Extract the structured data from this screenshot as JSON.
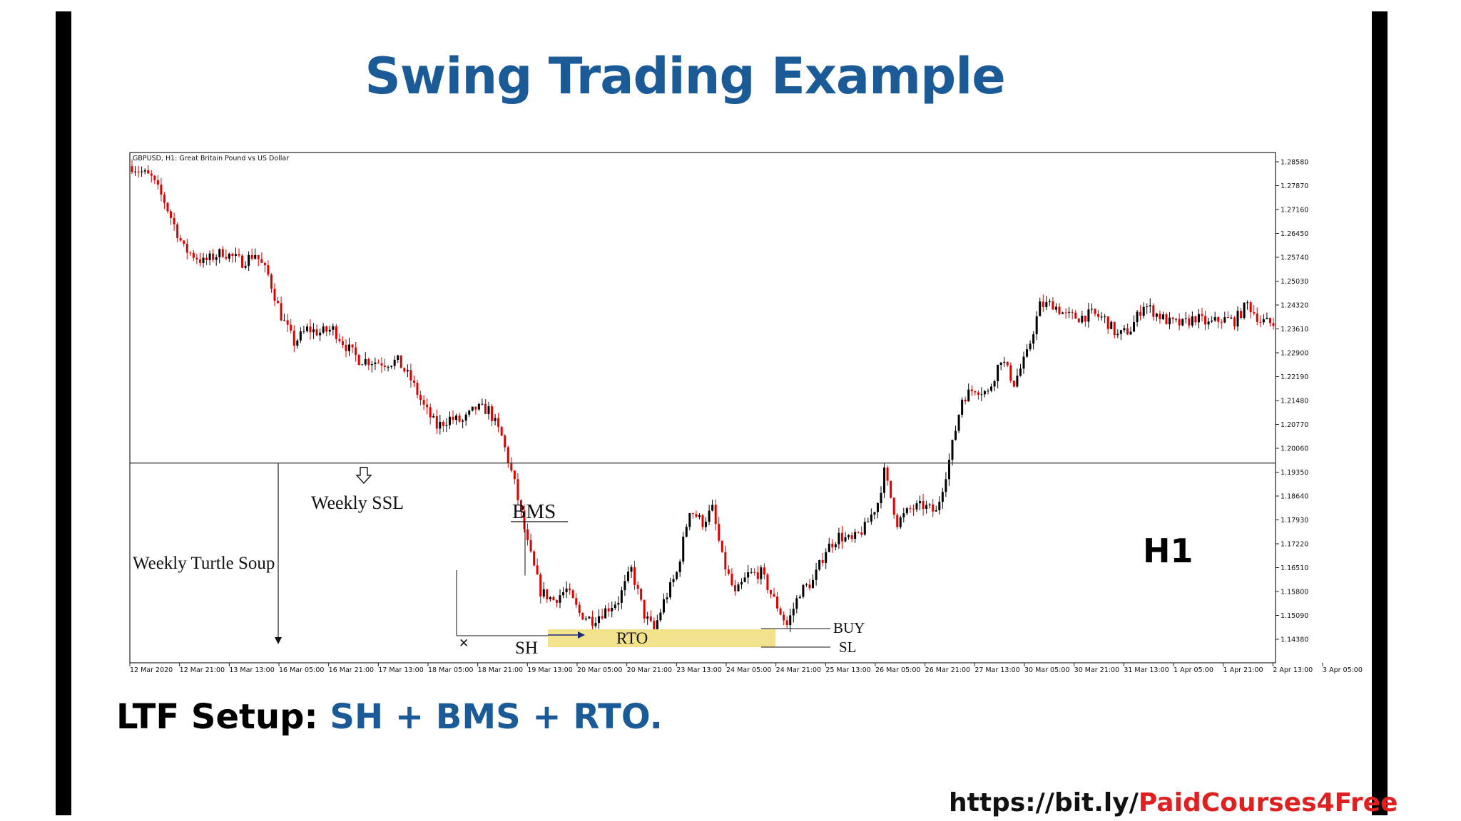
{
  "title": "Swing Trading Example",
  "setup": {
    "prefix": "LTF Setup:",
    "highlight": "SH + BMS + RTO."
  },
  "footer": {
    "domain": "https://bit.ly/",
    "path": "PaidCourses4Free"
  },
  "colors": {
    "title_blue": "#1a5a96",
    "bull_candle": "#000000",
    "bear_candle": "#e00000",
    "rto_zone": "#f3e28c",
    "footer_red": "#e02020"
  },
  "chart_data": {
    "type": "candlestick",
    "symbol_label": "GBPUSD, H1:  Great Britain Pound vs US Dollar",
    "timeframe_label": "H1",
    "ylim": [
      1.137,
      1.2887
    ],
    "y_ticks": [
      "1.28580",
      "1.27870",
      "1.27160",
      "1.26450",
      "1.25740",
      "1.25030",
      "1.24320",
      "1.23610",
      "1.22900",
      "1.22190",
      "1.21480",
      "1.20770",
      "1.20060",
      "1.19350",
      "1.18640",
      "1.17930",
      "1.17220",
      "1.16510",
      "1.15800",
      "1.15090",
      "1.14380"
    ],
    "x_ticks": [
      "12 Mar 2020",
      "12 Mar 21:00",
      "13 Mar 13:00",
      "16 Mar 05:00",
      "16 Mar 21:00",
      "17 Mar 13:00",
      "18 Mar 05:00",
      "18 Mar 21:00",
      "19 Mar 13:00",
      "20 Mar 05:00",
      "20 Mar 21:00",
      "23 Mar 13:00",
      "24 Mar 05:00",
      "24 Mar 21:00",
      "25 Mar 13:00",
      "26 Mar 05:00",
      "26 Mar 21:00",
      "27 Mar 13:00",
      "30 Mar 05:00",
      "30 Mar 21:00",
      "31 Mar 13:00",
      "1 Apr 05:00",
      "1 Apr 21:00",
      "2 Apr 13:00",
      "3 Apr 05:00"
    ],
    "price_path": [
      [
        0,
        1.2845
      ],
      [
        6,
        1.281
      ],
      [
        10,
        1.274
      ],
      [
        16,
        1.26
      ],
      [
        22,
        1.256
      ],
      [
        28,
        1.259
      ],
      [
        34,
        1.256
      ],
      [
        38,
        1.2585
      ],
      [
        42,
        1.252
      ],
      [
        46,
        1.24
      ],
      [
        50,
        1.232
      ],
      [
        54,
        1.236
      ],
      [
        58,
        1.235
      ],
      [
        62,
        1.236
      ],
      [
        66,
        1.231
      ],
      [
        70,
        1.227
      ],
      [
        74,
        1.2265
      ],
      [
        78,
        1.226
      ],
      [
        82,
        1.2265
      ],
      [
        86,
        1.221
      ],
      [
        90,
        1.213
      ],
      [
        94,
        1.207
      ],
      [
        98,
        1.2095
      ],
      [
        102,
        1.2085
      ],
      [
        106,
        1.2125
      ],
      [
        110,
        1.212
      ],
      [
        114,
        1.204
      ],
      [
        118,
        1.19
      ],
      [
        122,
        1.172
      ],
      [
        126,
        1.158
      ],
      [
        130,
        1.1555
      ],
      [
        134,
        1.1585
      ],
      [
        138,
        1.1515
      ],
      [
        142,
        1.1495
      ],
      [
        146,
        1.1525
      ],
      [
        150,
        1.1555
      ],
      [
        154,
        1.1645
      ],
      [
        158,
        1.151
      ],
      [
        161,
        1.1465
      ],
      [
        164,
        1.155
      ],
      [
        168,
        1.1635
      ],
      [
        172,
        1.1825
      ],
      [
        176,
        1.1785
      ],
      [
        179,
        1.1825
      ],
      [
        182,
        1.168
      ],
      [
        186,
        1.157
      ],
      [
        190,
        1.163
      ],
      [
        194,
        1.1635
      ],
      [
        198,
        1.1555
      ],
      [
        202,
        1.148
      ],
      [
        206,
        1.158
      ],
      [
        210,
        1.161
      ],
      [
        214,
        1.1705
      ],
      [
        218,
        1.1745
      ],
      [
        222,
        1.173
      ],
      [
        226,
        1.177
      ],
      [
        230,
        1.1845
      ],
      [
        232,
        1.1935
      ],
      [
        236,
        1.1785
      ],
      [
        240,
        1.1825
      ],
      [
        244,
        1.1835
      ],
      [
        248,
        1.1815
      ],
      [
        252,
        1.197
      ],
      [
        256,
        1.2155
      ],
      [
        260,
        1.2185
      ],
      [
        264,
        1.217
      ],
      [
        268,
        1.2275
      ],
      [
        272,
        1.22
      ],
      [
        276,
        1.2285
      ],
      [
        280,
        1.243
      ],
      [
        284,
        1.2435
      ],
      [
        288,
        1.24
      ],
      [
        292,
        1.2395
      ],
      [
        296,
        1.2405
      ],
      [
        300,
        1.239
      ],
      [
        304,
        1.234
      ],
      [
        308,
        1.236
      ],
      [
        312,
        1.2435
      ],
      [
        316,
        1.2405
      ],
      [
        320,
        1.238
      ],
      [
        324,
        1.2375
      ],
      [
        328,
        1.2395
      ],
      [
        332,
        1.2375
      ],
      [
        336,
        1.239
      ],
      [
        340,
        1.2385
      ],
      [
        344,
        1.2435
      ],
      [
        348,
        1.2385
      ],
      [
        352,
        1.2375
      ]
    ],
    "candle_count": 353,
    "levels": [
      {
        "name": "Weekly SSL",
        "price": 1.1962
      }
    ],
    "annotations": {
      "weekly_ssl": "Weekly SSL",
      "weekly_turtle_soup": "Weekly Turtle Soup",
      "bms": "BMS",
      "sh": "SH",
      "rto": "RTO",
      "buy": "BUY",
      "sl": "SL",
      "x_mark": "✕"
    },
    "rto_zone": {
      "price_top": 1.1474,
      "price_bottom": 1.1422
    },
    "buy_price": 1.148,
    "sl_price": 1.142,
    "bms_level_price": 1.1755,
    "sh_low_price": 1.1462
  }
}
